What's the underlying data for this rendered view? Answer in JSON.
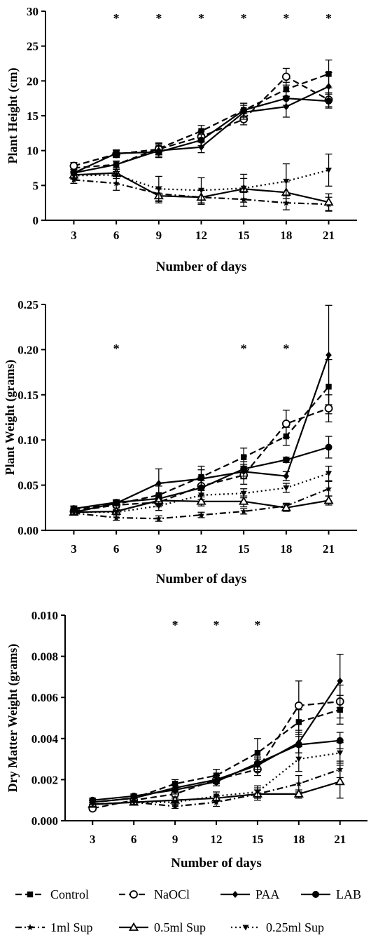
{
  "legend": {
    "items": [
      {
        "name": "Control",
        "marker": "square",
        "dash": "dashed"
      },
      {
        "name": "NaOCl",
        "marker": "circle-open",
        "dash": "dashed"
      },
      {
        "name": "PAA",
        "marker": "diamond",
        "dash": "solid"
      },
      {
        "name": "LAB",
        "marker": "circle",
        "dash": "solid"
      },
      {
        "name": "1ml Sup",
        "marker": "star",
        "dash": "dashdot"
      },
      {
        "name": "0.5ml Sup",
        "marker": "triangle-open",
        "dash": "solid"
      },
      {
        "name": "0.25ml Sup",
        "marker": "triangle-down",
        "dash": "dotted"
      }
    ]
  },
  "chart_data": [
    {
      "type": "line",
      "ylabel": "Plant Height (cm)",
      "xlabel": "Number of days",
      "x": [
        3,
        6,
        9,
        12,
        15,
        18,
        21
      ],
      "xlim": [
        1,
        23
      ],
      "ylim": [
        0,
        30
      ],
      "yticks": [
        "0",
        "5",
        "10",
        "15",
        "20",
        "25",
        "30"
      ],
      "significance_days": [
        6,
        9,
        12,
        15,
        18,
        21
      ],
      "significance_mark": "*",
      "series": [
        {
          "name": "Control",
          "values": [
            7.5,
            8.0,
            10.3,
            12.8,
            15.8,
            18.8,
            21.0
          ],
          "err": [
            0.5,
            0.5,
            0.8,
            0.8,
            1.0,
            1.0,
            2.0
          ]
        },
        {
          "name": "NaOCl",
          "values": [
            7.8,
            9.5,
            10.2,
            12.0,
            14.5,
            20.6,
            17.3
          ],
          "err": [
            0.5,
            0.5,
            0.8,
            0.8,
            0.8,
            1.2,
            1.0
          ]
        },
        {
          "name": "PAA",
          "values": [
            6.8,
            8.0,
            10.0,
            10.5,
            15.5,
            16.3,
            19.2
          ],
          "err": [
            0.5,
            0.5,
            0.8,
            0.8,
            1.0,
            1.5,
            2.0
          ]
        },
        {
          "name": "LAB",
          "values": [
            6.8,
            9.6,
            9.8,
            11.5,
            15.8,
            17.5,
            17.1
          ],
          "err": [
            0.5,
            0.5,
            0.8,
            0.8,
            1.0,
            1.0,
            1.0
          ]
        },
        {
          "name": "1ml Sup",
          "values": [
            5.8,
            5.3,
            3.8,
            3.3,
            3.0,
            2.5,
            2.3
          ],
          "err": [
            0.5,
            1.0,
            1.0,
            1.0,
            1.0,
            1.0,
            1.0
          ]
        },
        {
          "name": "0.5ml Sup",
          "values": [
            6.5,
            6.8,
            3.5,
            3.3,
            4.5,
            4.0,
            2.6
          ],
          "err": [
            0.5,
            0.5,
            1.0,
            1.0,
            1.5,
            1.5,
            1.2
          ]
        },
        {
          "name": "0.25ml Sup",
          "values": [
            6.4,
            6.5,
            4.5,
            4.3,
            4.6,
            5.6,
            7.2
          ],
          "err": [
            0.5,
            0.5,
            1.8,
            1.8,
            2.0,
            2.5,
            2.3
          ]
        }
      ]
    },
    {
      "type": "line",
      "ylabel": "Plant Weight (grams)",
      "xlabel": "Number of days",
      "x": [
        3,
        6,
        9,
        12,
        15,
        18,
        21
      ],
      "xlim": [
        1,
        23
      ],
      "ylim": [
        0,
        0.25
      ],
      "yticks": [
        "0.00",
        "0.05",
        "0.10",
        "0.15",
        "0.20",
        "0.25"
      ],
      "significance_days": [
        6,
        15,
        18
      ],
      "significance_mark": "*",
      "series": [
        {
          "name": "Control",
          "values": [
            0.023,
            0.029,
            0.039,
            0.059,
            0.081,
            0.104,
            0.159
          ],
          "err": [
            0.003,
            0.003,
            0.01,
            0.012,
            0.01,
            0.01,
            0.03
          ]
        },
        {
          "name": "NaOCl",
          "values": [
            0.021,
            0.028,
            0.031,
            0.049,
            0.061,
            0.118,
            0.135
          ],
          "err": [
            0.003,
            0.003,
            0.005,
            0.01,
            0.01,
            0.015,
            0.015
          ]
        },
        {
          "name": "PAA",
          "values": [
            0.02,
            0.03,
            0.052,
            0.057,
            0.065,
            0.06,
            0.194
          ],
          "err": [
            0.003,
            0.003,
            0.016,
            0.01,
            0.008,
            0.005,
            0.055
          ]
        },
        {
          "name": "LAB",
          "values": [
            0.024,
            0.031,
            0.035,
            0.047,
            0.068,
            0.078,
            0.092
          ],
          "err": [
            0.003,
            0.003,
            0.005,
            0.008,
            0.008,
            0.003,
            0.012
          ]
        },
        {
          "name": "1ml Sup",
          "values": [
            0.019,
            0.014,
            0.013,
            0.017,
            0.021,
            0.027,
            0.046
          ],
          "err": [
            0.002,
            0.003,
            0.003,
            0.003,
            0.003,
            0.003,
            0.008
          ]
        },
        {
          "name": "0.5ml Sup",
          "values": [
            0.02,
            0.021,
            0.033,
            0.032,
            0.032,
            0.025,
            0.033
          ],
          "err": [
            0.002,
            0.002,
            0.005,
            0.005,
            0.006,
            0.004,
            0.005
          ]
        },
        {
          "name": "0.25ml Sup",
          "values": [
            0.02,
            0.02,
            0.027,
            0.039,
            0.041,
            0.047,
            0.063
          ],
          "err": [
            0.002,
            0.002,
            0.005,
            0.005,
            0.005,
            0.005,
            0.008
          ]
        }
      ]
    },
    {
      "type": "line",
      "ylabel": "Dry Matter Weight (grams)",
      "xlabel": "Number of days",
      "x": [
        3,
        6,
        9,
        12,
        15,
        18,
        21
      ],
      "xlim": [
        1,
        23
      ],
      "ylim": [
        0,
        0.01
      ],
      "yticks": [
        "0.000",
        "0.002",
        "0.004",
        "0.006",
        "0.008",
        "0.010"
      ],
      "significance_days": [
        9,
        12,
        15
      ],
      "significance_mark": "*",
      "series": [
        {
          "name": "Control",
          "values": [
            0.0009,
            0.0011,
            0.0018,
            0.0022,
            0.0033,
            0.0048,
            0.0054
          ],
          "err": [
            0.0001,
            0.0001,
            0.0002,
            0.0003,
            0.0007,
            0.0006,
            0.0007
          ]
        },
        {
          "name": "NaOCl",
          "values": [
            0.0006,
            0.001,
            0.0013,
            0.002,
            0.0025,
            0.0056,
            0.0058
          ],
          "err": [
            0.0001,
            0.0001,
            0.0002,
            0.0002,
            0.0003,
            0.0012,
            0.0008
          ]
        },
        {
          "name": "PAA",
          "values": [
            0.0009,
            0.0011,
            0.0016,
            0.002,
            0.0027,
            0.0038,
            0.0068
          ],
          "err": [
            0.0001,
            0.0001,
            0.0002,
            0.0002,
            0.0003,
            0.0005,
            0.0013
          ]
        },
        {
          "name": "LAB",
          "values": [
            0.001,
            0.0012,
            0.0015,
            0.0019,
            0.0028,
            0.0037,
            0.0039
          ],
          "err": [
            0.0001,
            0.0001,
            0.0002,
            0.0002,
            0.0003,
            0.0004,
            0.0004
          ]
        },
        {
          "name": "1ml Sup",
          "values": [
            0.0008,
            0.0009,
            0.0007,
            0.0009,
            0.0013,
            0.0018,
            0.0025
          ],
          "err": [
            0.0001,
            0.0001,
            0.0001,
            0.0002,
            0.0003,
            0.0004,
            0.0004
          ]
        },
        {
          "name": "0.5ml Sup",
          "values": [
            0.0008,
            0.0009,
            0.001,
            0.0011,
            0.0013,
            0.0013,
            0.0019
          ],
          "err": [
            0.0001,
            0.0001,
            0.0001,
            0.0001,
            0.0002,
            0.0002,
            0.0008
          ]
        },
        {
          "name": "0.25ml Sup",
          "values": [
            0.0008,
            0.0009,
            0.0009,
            0.0012,
            0.0014,
            0.003,
            0.0033
          ],
          "err": [
            0.0001,
            0.0001,
            0.0001,
            0.0002,
            0.0003,
            0.0006,
            0.0005
          ]
        }
      ]
    }
  ]
}
